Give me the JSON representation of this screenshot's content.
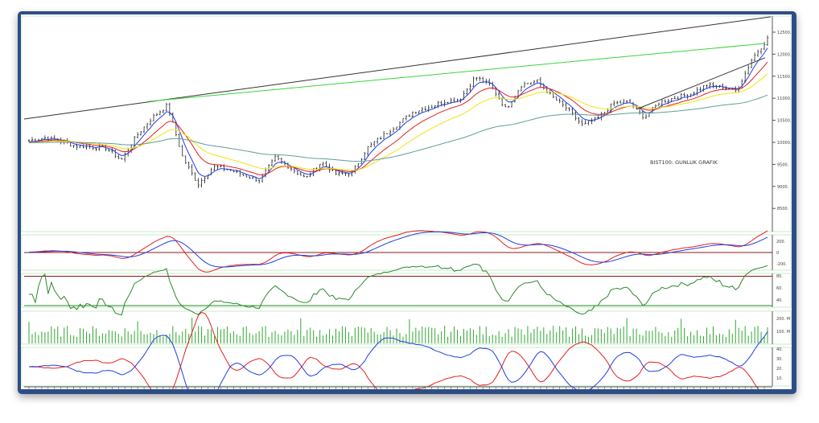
{
  "chart_data": [
    {
      "type": "candlestick",
      "annotation": "BIST100: GUNLUK GRAFIK",
      "y_ticks": [
        "12500.",
        "12000.",
        "11500.",
        "11000.",
        "10500.",
        "10000.",
        "9500.",
        "9000.",
        "8500."
      ],
      "ylim": [
        8050,
        12950
      ],
      "close_sampled": [
        10040,
        10100,
        10050,
        9920,
        9900,
        9870,
        9600,
        10150,
        10560,
        10840,
        9650,
        9050,
        9450,
        9380,
        9250,
        9140,
        9650,
        9420,
        9180,
        9550,
        9270,
        9310,
        9880,
        10150,
        10420,
        10700,
        10800,
        10930,
        10980,
        11480,
        11300,
        10750,
        11300,
        11400,
        11040,
        10750,
        10380,
        10550,
        10890,
        10920,
        10560,
        10920,
        11010,
        11100,
        11300,
        11260,
        11170,
        11900,
        12350
      ],
      "moving_averages": [
        {
          "color": "#1f3fe0"
        },
        {
          "color": "#e41f1f"
        },
        {
          "color": "#f2e40a"
        },
        {
          "color": "#5f9e9a"
        }
      ],
      "trendlines": [
        {
          "color": "#333333",
          "from": 10530,
          "to": 12850
        },
        {
          "color": "#39d63a",
          "from": 10930,
          "to": 12245
        },
        {
          "color": "#333333",
          "from": 10750,
          "to": 11920
        }
      ]
    },
    {
      "type": "line",
      "y_ticks": [
        "200.",
        "0",
        "-200."
      ],
      "series": [
        {
          "color": "#e41f1f"
        },
        {
          "color": "#1f3fe0"
        }
      ],
      "reference_color": "#8b1a1a"
    },
    {
      "type": "line",
      "y_ticks": [
        "80.",
        "60.",
        "40."
      ],
      "series": [
        {
          "color": "#2a8a2a"
        }
      ],
      "reference_color": "#8b1a1a"
    },
    {
      "type": "bar",
      "y_ticks": [
        "200. M",
        "100. M"
      ],
      "color": "#2fa82f"
    },
    {
      "type": "line",
      "y_ticks": [
        "40.",
        "30.",
        "20.",
        "10."
      ],
      "series": [
        {
          "color": "#e41f1f"
        },
        {
          "color": "#1f3fe0"
        }
      ]
    }
  ]
}
